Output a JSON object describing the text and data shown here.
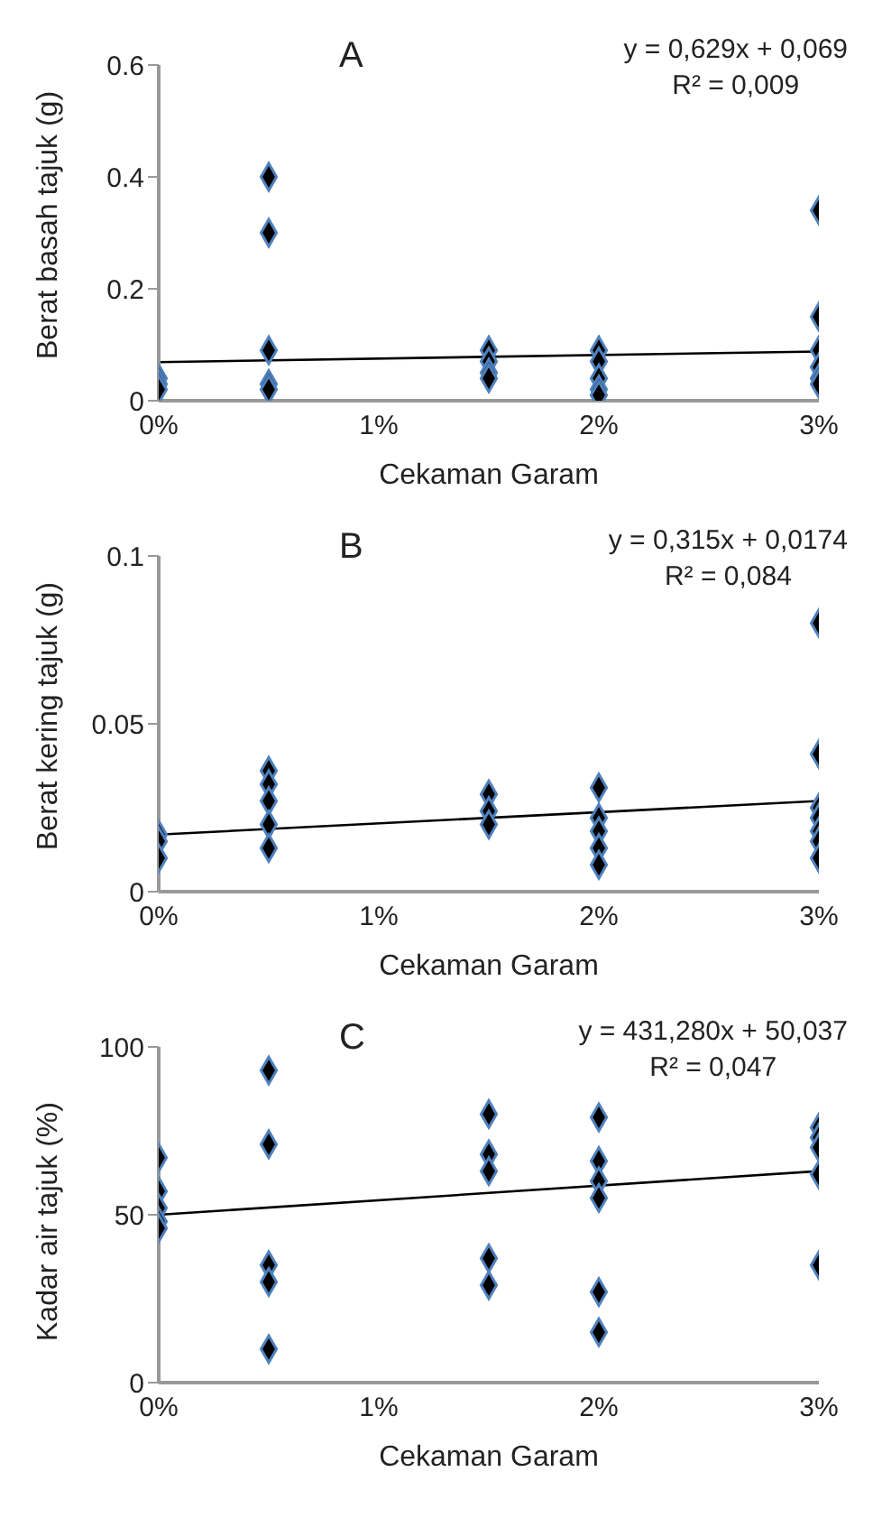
{
  "chart_data": [
    {
      "type": "scatter",
      "title": "A",
      "xlabel": "Cekaman Garam",
      "ylabel": "Berat basah tajuk (g)",
      "annotations": [
        "y = 0,629x + 0,069",
        "R² = 0,009"
      ],
      "xlim": [
        0,
        0.03
      ],
      "xticks": [
        {
          "value": 0,
          "label": "0%"
        },
        {
          "value": 0.01,
          "label": "1%"
        },
        {
          "value": 0.02,
          "label": "2%"
        },
        {
          "value": 0.03,
          "label": "3%"
        }
      ],
      "ylim": [
        0,
        0.6
      ],
      "yticks": [
        0,
        0.2,
        0.4,
        0.6
      ],
      "grid": false,
      "legend": false,
      "series": [
        {
          "marker": "diamond",
          "color": "#000000",
          "x": [
            0,
            0,
            0,
            0.005,
            0.005,
            0.005,
            0.005,
            0.005,
            0.015,
            0.015,
            0.015,
            0.015,
            0.02,
            0.02,
            0.02,
            0.02,
            0.02,
            0.03,
            0.03,
            0.03,
            0.03,
            0.03,
            0.03
          ],
          "values": [
            0.04,
            0.03,
            0.02,
            0.4,
            0.3,
            0.09,
            0.03,
            0.02,
            0.09,
            0.07,
            0.05,
            0.04,
            0.09,
            0.07,
            0.04,
            0.02,
            0.01,
            0.34,
            0.15,
            0.09,
            0.06,
            0.04,
            0.03
          ]
        },
        {
          "type": "line",
          "marker": "none",
          "color": "#000000",
          "x": [
            0,
            0.03
          ],
          "values": [
            0.069,
            0.088
          ]
        }
      ]
    },
    {
      "type": "scatter",
      "title": "B",
      "xlabel": "Cekaman Garam",
      "ylabel": "Berat kering tajuk (g)",
      "annotations": [
        "y = 0,315x + 0,0174",
        "R² = 0,084"
      ],
      "xlim": [
        0,
        0.03
      ],
      "xticks": [
        {
          "value": 0,
          "label": "0%"
        },
        {
          "value": 0.01,
          "label": "1%"
        },
        {
          "value": 0.02,
          "label": "2%"
        },
        {
          "value": 0.03,
          "label": "3%"
        }
      ],
      "ylim": [
        0,
        0.1
      ],
      "yticks": [
        0,
        0.05,
        0.1
      ],
      "grid": false,
      "legend": false,
      "series": [
        {
          "marker": "diamond",
          "color": "#000000",
          "x": [
            0,
            0,
            0,
            0.005,
            0.005,
            0.005,
            0.005,
            0.005,
            0.015,
            0.015,
            0.015,
            0.02,
            0.02,
            0.02,
            0.02,
            0.02,
            0.03,
            0.03,
            0.03,
            0.03,
            0.03,
            0.03,
            0.03
          ],
          "values": [
            0.017,
            0.015,
            0.01,
            0.036,
            0.032,
            0.027,
            0.02,
            0.013,
            0.029,
            0.024,
            0.02,
            0.031,
            0.022,
            0.018,
            0.013,
            0.008,
            0.08,
            0.041,
            0.025,
            0.022,
            0.018,
            0.015,
            0.01
          ]
        },
        {
          "type": "line",
          "marker": "none",
          "color": "#000000",
          "x": [
            0,
            0.03
          ],
          "values": [
            0.017,
            0.027
          ]
        }
      ]
    },
    {
      "type": "scatter",
      "title": "C",
      "xlabel": "Cekaman Garam",
      "ylabel": "Kadar air tajuk (%)",
      "annotations": [
        "y = 431,280x + 50,037",
        "R² = 0,047"
      ],
      "xlim": [
        0,
        0.03
      ],
      "xticks": [
        {
          "value": 0,
          "label": "0%"
        },
        {
          "value": 0.01,
          "label": "1%"
        },
        {
          "value": 0.02,
          "label": "2%"
        },
        {
          "value": 0.03,
          "label": "3%"
        }
      ],
      "ylim": [
        0,
        100
      ],
      "yticks": [
        0,
        50,
        100
      ],
      "grid": false,
      "legend": false,
      "series": [
        {
          "marker": "diamond",
          "color": "#000000",
          "x": [
            0,
            0,
            0,
            0,
            0,
            0.005,
            0.005,
            0.005,
            0.005,
            0.005,
            0.015,
            0.015,
            0.015,
            0.015,
            0.015,
            0.02,
            0.02,
            0.02,
            0.02,
            0.02,
            0.02,
            0.03,
            0.03,
            0.03,
            0.03,
            0.03
          ],
          "values": [
            67,
            57,
            52,
            48,
            46,
            93,
            71,
            35,
            30,
            10,
            80,
            68,
            63,
            37,
            29,
            79,
            66,
            60,
            55,
            27,
            15,
            76,
            73,
            70,
            62,
            35
          ]
        },
        {
          "type": "line",
          "marker": "none",
          "color": "#000000",
          "x": [
            0,
            0.03
          ],
          "values": [
            50,
            63
          ]
        }
      ]
    }
  ]
}
